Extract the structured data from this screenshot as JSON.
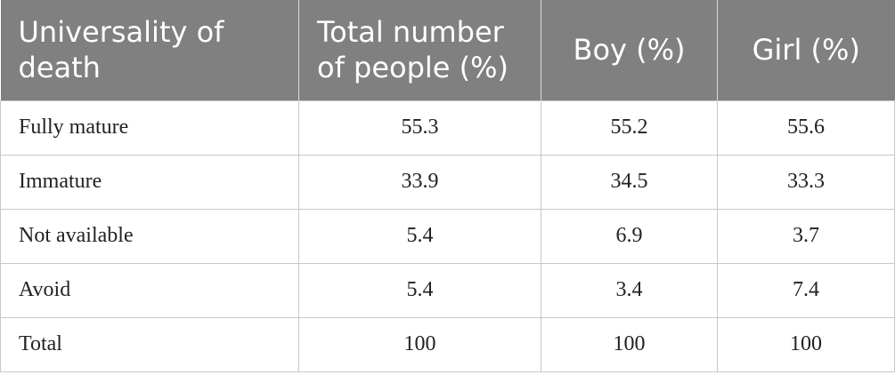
{
  "table": {
    "header": [
      "Universality of death",
      "Total number of people (%)",
      "Boy (%)",
      "Girl (%)"
    ],
    "rows": [
      [
        "Fully mature",
        "55.3",
        "55.2",
        "55.6"
      ],
      [
        "Immature",
        "33.9",
        "34.5",
        "33.3"
      ],
      [
        "Not available",
        "5.4",
        "6.9",
        "3.7"
      ],
      [
        "Avoid",
        "5.4",
        "3.4",
        "7.4"
      ],
      [
        "Total",
        "100",
        "100",
        "100"
      ]
    ]
  }
}
